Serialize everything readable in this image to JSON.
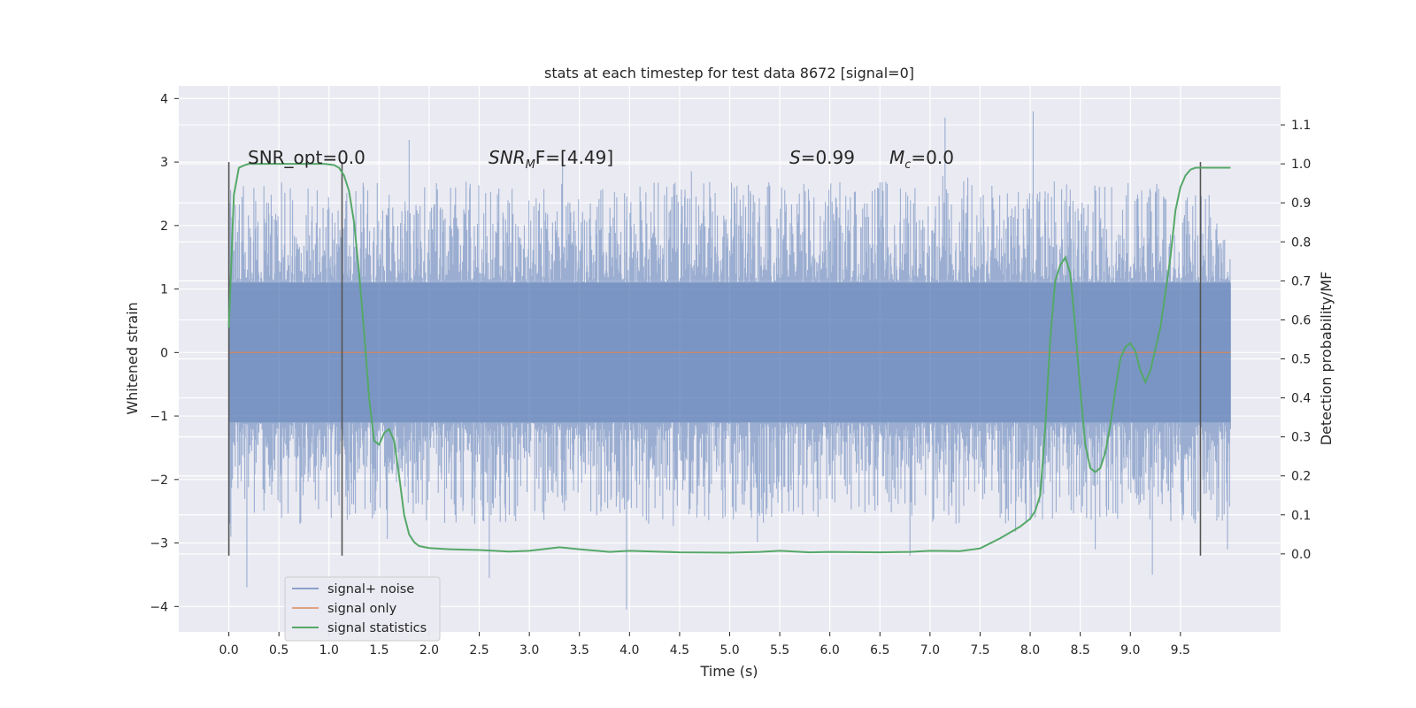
{
  "chart_data": {
    "type": "line",
    "title": "stats at each timestep for test data 8672 [signal=0]",
    "xlabel": "Time (s)",
    "ylabel_left": "Whitened strain",
    "ylabel_right": "Detection probability/MF",
    "xlim": [
      -0.5,
      10.5
    ],
    "ylim_left": [
      -4.4,
      4.2
    ],
    "ylim_right": [
      -0.2,
      1.2
    ],
    "x_ticks": [
      "0.0",
      "0.5",
      "1.0",
      "1.5",
      "2.0",
      "2.5",
      "3.0",
      "3.5",
      "4.0",
      "4.5",
      "5.0",
      "5.5",
      "6.0",
      "6.5",
      "7.0",
      "7.5",
      "8.0",
      "8.5",
      "9.0",
      "9.5"
    ],
    "y_ticks_left": [
      "−4",
      "−3",
      "−2",
      "−1",
      "0",
      "1",
      "2",
      "3",
      "4"
    ],
    "y_ticks_right": [
      "0.0",
      "0.1",
      "0.2",
      "0.3",
      "0.4",
      "0.5",
      "0.6",
      "0.7",
      "0.8",
      "0.9",
      "1.0",
      "1.1"
    ],
    "grid": true,
    "legend_position": "lower-left",
    "colors": {
      "background": "#eaeaf2",
      "grid": "#ffffff",
      "noise": "#4c72b0",
      "signal": "#dd8452",
      "statistics": "#55a868",
      "marker": "#555555"
    },
    "annotations": {
      "snr_opt": "SNR_opt=0.0",
      "snr_mf_prefix": "SNR",
      "snr_mf_sub": "M",
      "snr_mf_suffix": "F=[4.49]",
      "s_var": "S",
      "s_value": "=0.99",
      "mc_var": "M",
      "mc_sub": "c",
      "mc_value": "=0.0"
    },
    "vertical_markers_x": [
      0.0,
      1.13,
      9.7
    ],
    "vertical_marker_range_left": [
      -3.2,
      3.0
    ],
    "series": [
      {
        "name": "signal+ noise",
        "kind": "noise",
        "x_range": [
          0.0,
          10.0
        ],
        "core_amplitude": 1.1,
        "peaks": [
          {
            "x": 0.02,
            "y": -2.9
          },
          {
            "x": 0.18,
            "y": -3.7
          },
          {
            "x": 1.8,
            "y": 3.35
          },
          {
            "x": 2.6,
            "y": -3.55
          },
          {
            "x": 3.97,
            "y": -4.05
          },
          {
            "x": 7.15,
            "y": 3.7
          },
          {
            "x": 8.03,
            "y": 3.8
          },
          {
            "x": 9.22,
            "y": -3.5
          },
          {
            "x": 6.8,
            "y": -3.2
          },
          {
            "x": 8.65,
            "y": -3.1
          },
          {
            "x": 9.97,
            "y": -3.1
          }
        ]
      },
      {
        "name": "signal only",
        "kind": "flat",
        "x": [
          0.0,
          10.0
        ],
        "y": [
          0.0,
          0.0
        ]
      },
      {
        "name": "signal statistics",
        "kind": "line",
        "axis": "right",
        "x": [
          0.0,
          0.05,
          0.1,
          0.15,
          0.2,
          0.3,
          0.5,
          0.8,
          0.95,
          1.05,
          1.1,
          1.15,
          1.2,
          1.25,
          1.3,
          1.35,
          1.4,
          1.45,
          1.5,
          1.55,
          1.6,
          1.65,
          1.7,
          1.75,
          1.8,
          1.85,
          1.9,
          2.0,
          2.2,
          2.5,
          2.8,
          3.0,
          3.3,
          3.5,
          3.8,
          4.0,
          4.5,
          5.0,
          5.3,
          5.5,
          5.8,
          6.0,
          6.5,
          6.8,
          7.0,
          7.3,
          7.5,
          7.7,
          7.9,
          8.0,
          8.05,
          8.1,
          8.15,
          8.2,
          8.25,
          8.3,
          8.35,
          8.4,
          8.45,
          8.5,
          8.55,
          8.6,
          8.65,
          8.7,
          8.75,
          8.8,
          8.85,
          8.9,
          8.95,
          9.0,
          9.05,
          9.1,
          9.15,
          9.2,
          9.3,
          9.4,
          9.45,
          9.5,
          9.55,
          9.6,
          9.65,
          9.7,
          9.75,
          9.8,
          9.85,
          9.9,
          9.95,
          10.0
        ],
        "y": [
          0.58,
          0.92,
          0.99,
          0.996,
          1.0,
          1.0,
          1.0,
          1.0,
          1.0,
          0.997,
          0.99,
          0.97,
          0.93,
          0.85,
          0.72,
          0.57,
          0.4,
          0.29,
          0.28,
          0.31,
          0.32,
          0.29,
          0.2,
          0.1,
          0.05,
          0.03,
          0.02,
          0.015,
          0.012,
          0.01,
          0.006,
          0.008,
          0.017,
          0.012,
          0.005,
          0.008,
          0.004,
          0.003,
          0.005,
          0.008,
          0.004,
          0.005,
          0.004,
          0.005,
          0.008,
          0.007,
          0.014,
          0.04,
          0.07,
          0.09,
          0.11,
          0.15,
          0.32,
          0.55,
          0.7,
          0.74,
          0.76,
          0.72,
          0.58,
          0.42,
          0.28,
          0.22,
          0.21,
          0.22,
          0.26,
          0.33,
          0.42,
          0.5,
          0.53,
          0.54,
          0.52,
          0.47,
          0.44,
          0.47,
          0.58,
          0.76,
          0.88,
          0.94,
          0.97,
          0.985,
          0.99,
          0.99,
          0.99,
          0.99,
          0.99,
          0.99,
          0.99,
          0.99
        ]
      }
    ]
  }
}
